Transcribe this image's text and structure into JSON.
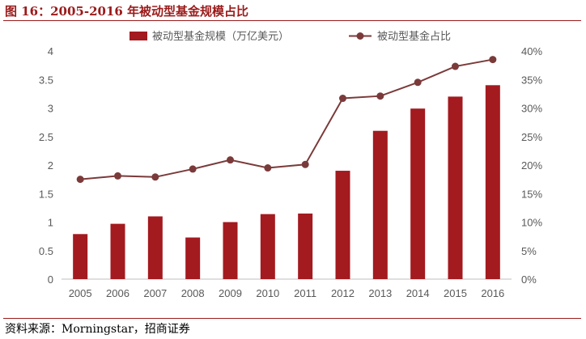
{
  "figure": {
    "title": "图 16：2005-2016 年被动型基金规模占比",
    "source": "资料来源：Morningstar，招商证券"
  },
  "colors": {
    "bar": "#a31a1f",
    "line": "#7b3a3a",
    "rule": "#9b1a1a",
    "axis": "#bfbfbf"
  },
  "chart_data": {
    "type": "bar",
    "categories": [
      "2005",
      "2006",
      "2007",
      "2008",
      "2009",
      "2010",
      "2011",
      "2012",
      "2013",
      "2014",
      "2015",
      "2016"
    ],
    "series": [
      {
        "name": "被动型基金规模（万亿美元）",
        "type": "bar",
        "axis": "left",
        "values": [
          0.79,
          0.97,
          1.1,
          0.73,
          1.0,
          1.14,
          1.15,
          1.9,
          2.6,
          2.99,
          3.2,
          3.4
        ]
      },
      {
        "name": "被动型基金占比",
        "type": "line",
        "axis": "right",
        "values": [
          17.5,
          18.1,
          17.9,
          19.3,
          20.9,
          19.5,
          20.1,
          31.7,
          32.1,
          34.5,
          37.3,
          38.5
        ]
      }
    ],
    "y_left": {
      "min": 0,
      "max": 4,
      "ticks": [
        "0",
        "0.5",
        "1",
        "1.5",
        "2",
        "2.5",
        "3",
        "3.5",
        "4"
      ]
    },
    "y_right": {
      "min": 0,
      "max": 40,
      "ticks": [
        "0%",
        "5%",
        "10%",
        "15%",
        "20%",
        "25%",
        "30%",
        "35%",
        "40%"
      ]
    },
    "grid": false,
    "legend": "top-center"
  }
}
